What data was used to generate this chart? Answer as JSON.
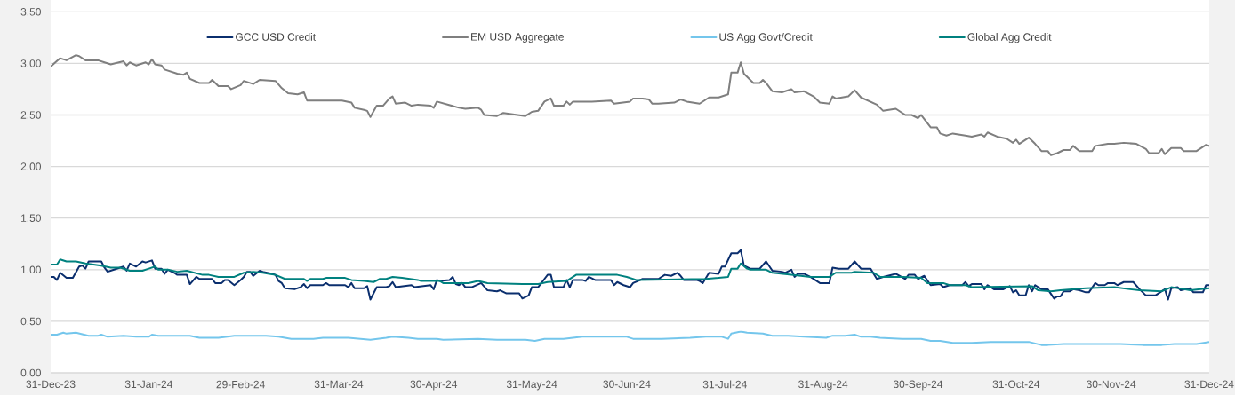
{
  "chart_data": {
    "type": "line",
    "xlim": [
      "2023-12-31",
      "2024-12-31"
    ],
    "xticks": [
      {
        "value": "2023-12-31",
        "label": "31-Dec-23"
      },
      {
        "value": "2024-01-31",
        "label": "31-Jan-24"
      },
      {
        "value": "2024-02-29",
        "label": "29-Feb-24"
      },
      {
        "value": "2024-03-31",
        "label": "31-Mar-24"
      },
      {
        "value": "2024-04-30",
        "label": "30-Apr-24"
      },
      {
        "value": "2024-05-31",
        "label": "31-May-24"
      },
      {
        "value": "2024-06-30",
        "label": "30-Jun-24"
      },
      {
        "value": "2024-07-31",
        "label": "31-Jul-24"
      },
      {
        "value": "2024-08-31",
        "label": "31-Aug-24"
      },
      {
        "value": "2024-09-30",
        "label": "30-Sep-24"
      },
      {
        "value": "2024-10-31",
        "label": "31-Oct-24"
      },
      {
        "value": "2024-11-30",
        "label": "30-Nov-24"
      },
      {
        "value": "2024-12-31",
        "label": "31-Dec-24"
      }
    ],
    "ylim": [
      0,
      3.5
    ],
    "yticks": [
      {
        "value": 0,
        "label": "0.00"
      },
      {
        "value": 0.5,
        "label": "0.50"
      },
      {
        "value": 1,
        "label": "1.00"
      },
      {
        "value": 1.5,
        "label": "1.50"
      },
      {
        "value": 2,
        "label": "2.00"
      },
      {
        "value": 2.5,
        "label": "2.50"
      },
      {
        "value": 3,
        "label": "3.00"
      },
      {
        "value": 3.5,
        "label": "3.50"
      }
    ],
    "grid": "y",
    "legend": "top",
    "marker": "none",
    "line_style": "solid",
    "series": [
      {
        "name": "GCC USD Credit",
        "color": "#0b2f6e",
        "x": [
          "2023-12-31",
          "2024-01-01",
          "2024-01-02",
          "2024-01-03",
          "2024-01-05",
          "2024-01-07",
          "2024-01-09",
          "2024-01-10",
          "2024-01-11",
          "2024-01-12",
          "2024-01-16",
          "2024-01-17",
          "2024-01-18",
          "2024-01-20",
          "2024-01-23",
          "2024-01-24",
          "2024-01-25",
          "2024-01-27",
          "2024-01-29",
          "2024-01-30",
          "2024-02-01",
          "2024-02-02",
          "2024-02-04",
          "2024-02-05",
          "2024-02-06",
          "2024-02-08",
          "2024-02-09",
          "2024-02-12",
          "2024-02-13",
          "2024-02-15",
          "2024-02-16",
          "2024-02-20",
          "2024-02-21",
          "2024-02-23",
          "2024-02-24",
          "2024-02-25",
          "2024-02-27",
          "2024-02-29",
          "2024-03-01",
          "2024-03-02",
          "2024-03-03",
          "2024-03-04",
          "2024-03-06",
          "2024-03-07",
          "2024-03-10",
          "2024-03-11",
          "2024-03-12",
          "2024-03-13",
          "2024-03-14",
          "2024-03-17",
          "2024-03-19",
          "2024-03-20",
          "2024-03-21",
          "2024-03-22",
          "2024-03-26",
          "2024-03-27",
          "2024-03-28",
          "2024-04-02",
          "2024-04-03",
          "2024-04-04",
          "2024-04-05",
          "2024-04-08",
          "2024-04-09",
          "2024-04-10",
          "2024-04-12",
          "2024-04-15",
          "2024-04-16",
          "2024-04-17",
          "2024-04-18",
          "2024-04-23",
          "2024-04-24",
          "2024-04-29",
          "2024-04-30",
          "2024-05-01",
          "2024-05-02",
          "2024-05-05",
          "2024-05-06",
          "2024-05-07",
          "2024-05-08",
          "2024-05-09",
          "2024-05-10",
          "2024-05-12",
          "2024-05-15",
          "2024-05-17",
          "2024-05-20",
          "2024-05-21",
          "2024-05-23",
          "2024-05-27",
          "2024-05-28",
          "2024-05-30",
          "2024-05-31",
          "2024-06-02",
          "2024-06-04",
          "2024-06-05",
          "2024-06-06",
          "2024-06-07",
          "2024-06-10",
          "2024-06-11",
          "2024-06-12",
          "2024-06-13",
          "2024-06-16",
          "2024-06-17",
          "2024-06-18",
          "2024-06-20",
          "2024-06-25",
          "2024-06-26",
          "2024-06-27",
          "2024-06-29",
          "2024-07-01",
          "2024-07-02",
          "2024-07-05",
          "2024-07-10",
          "2024-07-12",
          "2024-07-14",
          "2024-07-16",
          "2024-07-17",
          "2024-07-18",
          "2024-07-22",
          "2024-07-23",
          "2024-07-24",
          "2024-07-26",
          "2024-07-29",
          "2024-07-30",
          "2024-07-31",
          "2024-08-02",
          "2024-08-04",
          "2024-08-05",
          "2024-08-06",
          "2024-08-08",
          "2024-08-11",
          "2024-08-13",
          "2024-08-15",
          "2024-08-18",
          "2024-08-19",
          "2024-08-21",
          "2024-08-22",
          "2024-08-23",
          "2024-08-25",
          "2024-08-27",
          "2024-08-30",
          "2024-09-02",
          "2024-09-03",
          "2024-09-05",
          "2024-09-08",
          "2024-09-10",
          "2024-09-12",
          "2024-09-15",
          "2024-09-17",
          "2024-09-19",
          "2024-09-23",
          "2024-09-26",
          "2024-09-27",
          "2024-09-29",
          "2024-09-30",
          "2024-10-02",
          "2024-10-04",
          "2024-10-07",
          "2024-10-08",
          "2024-10-10",
          "2024-10-14",
          "2024-10-15",
          "2024-10-16",
          "2024-10-17",
          "2024-10-20",
          "2024-10-21",
          "2024-10-22",
          "2024-10-24",
          "2024-10-27",
          "2024-10-29",
          "2024-10-30",
          "2024-10-31",
          "2024-11-01",
          "2024-11-03",
          "2024-11-04",
          "2024-11-05",
          "2024-11-06",
          "2024-11-08",
          "2024-11-10",
          "2024-11-12",
          "2024-11-13",
          "2024-11-14",
          "2024-11-15",
          "2024-11-17",
          "2024-11-18",
          "2024-11-20",
          "2024-11-22",
          "2024-11-23",
          "2024-11-25",
          "2024-11-26",
          "2024-11-28",
          "2024-11-29",
          "2024-12-01",
          "2024-12-02",
          "2024-12-04",
          "2024-12-07",
          "2024-12-09",
          "2024-12-11",
          "2024-12-14",
          "2024-12-16",
          "2024-12-17",
          "2024-12-18",
          "2024-12-19",
          "2024-12-21",
          "2024-12-22",
          "2024-12-25",
          "2024-12-26",
          "2024-12-29",
          "2024-12-30",
          "2024-12-31"
        ],
        "values": [
          0.93,
          0.93,
          0.9,
          0.97,
          0.92,
          0.92,
          1.03,
          1.04,
          1.01,
          1.08,
          1.08,
          1.02,
          0.98,
          1.0,
          1.03,
          0.99,
          1.06,
          1.03,
          1.08,
          1.07,
          1.09,
          1.01,
          1.01,
          0.96,
          1.0,
          0.97,
          0.95,
          0.95,
          0.86,
          0.93,
          0.91,
          0.91,
          0.87,
          0.87,
          0.9,
          0.9,
          0.85,
          0.9,
          0.93,
          0.98,
          0.98,
          0.94,
          0.99,
          0.98,
          0.96,
          0.95,
          0.89,
          0.87,
          0.82,
          0.81,
          0.83,
          0.86,
          0.82,
          0.85,
          0.85,
          0.87,
          0.85,
          0.85,
          0.83,
          0.87,
          0.82,
          0.82,
          0.84,
          0.71,
          0.83,
          0.83,
          0.84,
          0.88,
          0.83,
          0.85,
          0.83,
          0.85,
          0.81,
          0.9,
          0.89,
          0.9,
          0.93,
          0.86,
          0.85,
          0.87,
          0.83,
          0.83,
          0.87,
          0.8,
          0.79,
          0.8,
          0.77,
          0.77,
          0.72,
          0.75,
          0.83,
          0.83,
          0.91,
          0.95,
          0.95,
          0.83,
          0.83,
          0.9,
          0.83,
          0.9,
          0.9,
          0.89,
          0.93,
          0.9,
          0.9,
          0.85,
          0.88,
          0.85,
          0.83,
          0.87,
          0.91,
          0.91,
          0.95,
          0.94,
          0.97,
          0.94,
          0.9,
          0.9,
          0.89,
          0.87,
          0.97,
          0.96,
          1.03,
          1.03,
          1.16,
          1.16,
          1.19,
          1.04,
          1.01,
          1.01,
          1.08,
          0.99,
          0.98,
          0.97,
          1.0,
          0.93,
          0.96,
          0.96,
          0.93,
          0.87,
          0.87,
          1.02,
          1.01,
          1.01,
          1.08,
          1.01,
          1.01,
          0.91,
          0.93,
          0.96,
          0.91,
          0.95,
          0.95,
          0.91,
          0.94,
          0.85,
          0.86,
          0.83,
          0.85,
          0.85,
          0.88,
          0.84,
          0.86,
          0.86,
          0.81,
          0.85,
          0.81,
          0.81,
          0.84,
          0.78,
          0.8,
          0.75,
          0.75,
          0.85,
          0.79,
          0.85,
          0.81,
          0.81,
          0.72,
          0.74,
          0.74,
          0.79,
          0.79,
          0.81,
          0.8,
          0.78,
          0.78,
          0.87,
          0.85,
          0.85,
          0.87,
          0.87,
          0.85,
          0.88,
          0.88,
          0.81,
          0.75,
          0.75,
          0.79,
          0.81,
          0.71,
          0.82,
          0.83,
          0.8,
          0.82,
          0.78,
          0.78,
          0.85,
          0.85
        ]
      },
      {
        "name": "EM USD Aggregate",
        "color": "#7f7f7f",
        "x": [
          "2023-12-31",
          "2024-01-03",
          "2024-01-05",
          "2024-01-08",
          "2024-01-09",
          "2024-01-11",
          "2024-01-15",
          "2024-01-17",
          "2024-01-19",
          "2024-01-23",
          "2024-01-24",
          "2024-01-25",
          "2024-01-27",
          "2024-01-30",
          "2024-01-31",
          "2024-02-01",
          "2024-02-02",
          "2024-02-04",
          "2024-02-05",
          "2024-02-09",
          "2024-02-11",
          "2024-02-12",
          "2024-02-13",
          "2024-02-16",
          "2024-02-19",
          "2024-02-20",
          "2024-02-22",
          "2024-02-25",
          "2024-02-26",
          "2024-02-29",
          "2024-03-01",
          "2024-03-04",
          "2024-03-06",
          "2024-03-11",
          "2024-03-13",
          "2024-03-15",
          "2024-03-18",
          "2024-03-20",
          "2024-03-21",
          "2024-03-24",
          "2024-03-27",
          "2024-04-01",
          "2024-04-04",
          "2024-04-05",
          "2024-04-08",
          "2024-04-09",
          "2024-04-10",
          "2024-04-12",
          "2024-04-14",
          "2024-04-16",
          "2024-04-17",
          "2024-04-18",
          "2024-04-21",
          "2024-04-23",
          "2024-04-25",
          "2024-04-29",
          "2024-04-30",
          "2024-05-01",
          "2024-05-08",
          "2024-05-10",
          "2024-05-14",
          "2024-05-15",
          "2024-05-16",
          "2024-05-20",
          "2024-05-22",
          "2024-05-29",
          "2024-05-31",
          "2024-06-02",
          "2024-06-04",
          "2024-06-06",
          "2024-06-07",
          "2024-06-10",
          "2024-06-11",
          "2024-06-12",
          "2024-06-13",
          "2024-06-19",
          "2024-06-25",
          "2024-06-26",
          "2024-07-01",
          "2024-07-02",
          "2024-07-05",
          "2024-07-07",
          "2024-07-08",
          "2024-07-10",
          "2024-07-15",
          "2024-07-17",
          "2024-07-19",
          "2024-07-23",
          "2024-07-26",
          "2024-07-29",
          "2024-08-01",
          "2024-08-02",
          "2024-08-04",
          "2024-08-05",
          "2024-08-06",
          "2024-08-09",
          "2024-08-11",
          "2024-08-12",
          "2024-08-13",
          "2024-08-15",
          "2024-08-18",
          "2024-08-21",
          "2024-08-22",
          "2024-08-25",
          "2024-08-28",
          "2024-08-30",
          "2024-09-02",
          "2024-09-03",
          "2024-09-04",
          "2024-09-08",
          "2024-09-10",
          "2024-09-12",
          "2024-09-17",
          "2024-09-18",
          "2024-09-19",
          "2024-09-23",
          "2024-09-26",
          "2024-09-28",
          "2024-09-30",
          "2024-10-01",
          "2024-10-02",
          "2024-10-04",
          "2024-10-06",
          "2024-10-07",
          "2024-10-09",
          "2024-10-11",
          "2024-10-15",
          "2024-10-17",
          "2024-10-20",
          "2024-10-21",
          "2024-10-22",
          "2024-10-25",
          "2024-10-28",
          "2024-10-30",
          "2024-10-31",
          "2024-11-01",
          "2024-11-04",
          "2024-11-06",
          "2024-11-08",
          "2024-11-10",
          "2024-11-11",
          "2024-11-13",
          "2024-11-15",
          "2024-11-17",
          "2024-11-18",
          "2024-11-20",
          "2024-11-24",
          "2024-11-25",
          "2024-11-29",
          "2024-12-01",
          "2024-12-04",
          "2024-12-08",
          "2024-12-11",
          "2024-12-12",
          "2024-12-15",
          "2024-12-16",
          "2024-12-17",
          "2024-12-19",
          "2024-12-22",
          "2024-12-23",
          "2024-12-27",
          "2024-12-30",
          "2024-12-31"
        ],
        "values": [
          2.97,
          3.05,
          3.03,
          3.08,
          3.07,
          3.03,
          3.03,
          3.01,
          2.99,
          3.02,
          2.98,
          3.01,
          2.98,
          3.01,
          2.99,
          3.04,
          2.99,
          2.98,
          2.94,
          2.9,
          2.89,
          2.91,
          2.85,
          2.81,
          2.81,
          2.84,
          2.78,
          2.78,
          2.75,
          2.79,
          2.83,
          2.8,
          2.84,
          2.83,
          2.76,
          2.71,
          2.7,
          2.72,
          2.64,
          2.64,
          2.64,
          2.64,
          2.62,
          2.57,
          2.55,
          2.54,
          2.48,
          2.59,
          2.59,
          2.66,
          2.68,
          2.61,
          2.62,
          2.59,
          2.6,
          2.59,
          2.57,
          2.63,
          2.57,
          2.56,
          2.57,
          2.55,
          2.5,
          2.49,
          2.52,
          2.49,
          2.53,
          2.54,
          2.63,
          2.66,
          2.59,
          2.59,
          2.63,
          2.6,
          2.63,
          2.63,
          2.64,
          2.61,
          2.63,
          2.66,
          2.66,
          2.65,
          2.61,
          2.61,
          2.62,
          2.65,
          2.63,
          2.61,
          2.67,
          2.67,
          2.7,
          2.91,
          2.91,
          3.01,
          2.9,
          2.81,
          2.81,
          2.84,
          2.81,
          2.73,
          2.72,
          2.75,
          2.72,
          2.73,
          2.68,
          2.62,
          2.61,
          2.68,
          2.66,
          2.68,
          2.74,
          2.67,
          2.6,
          2.57,
          2.54,
          2.56,
          2.5,
          2.5,
          2.47,
          2.5,
          2.46,
          2.38,
          2.38,
          2.32,
          2.3,
          2.32,
          2.3,
          2.29,
          2.31,
          2.29,
          2.33,
          2.29,
          2.27,
          2.23,
          2.26,
          2.22,
          2.28,
          2.22,
          2.15,
          2.15,
          2.11,
          2.13,
          2.16,
          2.16,
          2.2,
          2.15,
          2.15,
          2.2,
          2.22,
          2.22,
          2.23,
          2.22,
          2.17,
          2.13,
          2.13,
          2.17,
          2.12,
          2.18,
          2.18,
          2.15,
          2.15,
          2.21,
          2.2
        ]
      },
      {
        "name": "US Agg Govt/Credit",
        "color": "#74c6ec",
        "x": [
          "2023-12-31",
          "2024-01-02",
          "2024-01-04",
          "2024-01-05",
          "2024-01-08",
          "2024-01-12",
          "2024-01-15",
          "2024-01-16",
          "2024-01-18",
          "2024-01-23",
          "2024-01-27",
          "2024-01-31",
          "2024-02-01",
          "2024-02-03",
          "2024-02-13",
          "2024-02-16",
          "2024-02-22",
          "2024-02-27",
          "2024-03-02",
          "2024-03-08",
          "2024-03-12",
          "2024-03-16",
          "2024-03-23",
          "2024-03-26",
          "2024-04-03",
          "2024-04-10",
          "2024-04-15",
          "2024-04-17",
          "2024-04-22",
          "2024-04-25",
          "2024-05-01",
          "2024-05-03",
          "2024-05-14",
          "2024-05-20",
          "2024-05-29",
          "2024-06-01",
          "2024-06-04",
          "2024-06-10",
          "2024-06-16",
          "2024-06-26",
          "2024-06-30",
          "2024-07-02",
          "2024-07-11",
          "2024-07-20",
          "2024-07-25",
          "2024-07-30",
          "2024-08-01",
          "2024-08-02",
          "2024-08-05",
          "2024-08-07",
          "2024-08-12",
          "2024-08-15",
          "2024-08-20",
          "2024-08-25",
          "2024-09-01",
          "2024-09-03",
          "2024-09-07",
          "2024-09-10",
          "2024-09-12",
          "2024-09-15",
          "2024-09-18",
          "2024-09-25",
          "2024-10-01",
          "2024-10-04",
          "2024-10-07",
          "2024-10-11",
          "2024-10-17",
          "2024-10-23",
          "2024-10-29",
          "2024-11-04",
          "2024-11-08",
          "2024-11-10",
          "2024-11-15",
          "2024-11-22",
          "2024-11-27",
          "2024-12-03",
          "2024-12-10",
          "2024-12-16",
          "2024-12-20",
          "2024-12-23",
          "2024-12-27",
          "2024-12-31"
        ],
        "values": [
          0.37,
          0.37,
          0.39,
          0.38,
          0.39,
          0.36,
          0.36,
          0.37,
          0.35,
          0.36,
          0.35,
          0.35,
          0.37,
          0.36,
          0.36,
          0.34,
          0.34,
          0.36,
          0.36,
          0.36,
          0.35,
          0.33,
          0.33,
          0.34,
          0.34,
          0.32,
          0.34,
          0.35,
          0.34,
          0.33,
          0.33,
          0.32,
          0.33,
          0.32,
          0.32,
          0.31,
          0.33,
          0.33,
          0.35,
          0.35,
          0.35,
          0.33,
          0.33,
          0.34,
          0.35,
          0.35,
          0.33,
          0.38,
          0.4,
          0.39,
          0.38,
          0.36,
          0.36,
          0.35,
          0.34,
          0.36,
          0.36,
          0.37,
          0.35,
          0.35,
          0.34,
          0.33,
          0.33,
          0.31,
          0.31,
          0.29,
          0.29,
          0.3,
          0.3,
          0.3,
          0.27,
          0.27,
          0.28,
          0.28,
          0.28,
          0.28,
          0.27,
          0.27,
          0.28,
          0.28,
          0.28,
          0.3
        ]
      },
      {
        "name": "Global Agg Credit",
        "color": "#00817f",
        "x": [
          "2023-12-31",
          "2024-01-02",
          "2024-01-03",
          "2024-01-05",
          "2024-01-08",
          "2024-01-11",
          "2024-01-16",
          "2024-01-19",
          "2024-01-22",
          "2024-01-25",
          "2024-01-29",
          "2024-01-31",
          "2024-02-02",
          "2024-02-03",
          "2024-02-06",
          "2024-02-09",
          "2024-02-12",
          "2024-02-17",
          "2024-02-19",
          "2024-02-22",
          "2024-02-27",
          "2024-03-01",
          "2024-03-04",
          "2024-03-07",
          "2024-03-09",
          "2024-03-11",
          "2024-03-14",
          "2024-03-20",
          "2024-03-21",
          "2024-03-22",
          "2024-03-26",
          "2024-03-27",
          "2024-04-02",
          "2024-04-04",
          "2024-04-08",
          "2024-04-11",
          "2024-04-13",
          "2024-04-15",
          "2024-04-17",
          "2024-04-20",
          "2024-04-25",
          "2024-04-26",
          "2024-05-02",
          "2024-05-03",
          "2024-05-11",
          "2024-05-14",
          "2024-05-17",
          "2024-05-28",
          "2024-06-02",
          "2024-06-05",
          "2024-06-11",
          "2024-06-14",
          "2024-06-27",
          "2024-06-30",
          "2024-07-03",
          "2024-07-25",
          "2024-07-29",
          "2024-08-01",
          "2024-08-02",
          "2024-08-04",
          "2024-08-05",
          "2024-08-07",
          "2024-08-08",
          "2024-08-13",
          "2024-08-15",
          "2024-08-21",
          "2024-08-27",
          "2024-09-02",
          "2024-09-04",
          "2024-09-09",
          "2024-09-10",
          "2024-09-16",
          "2024-09-18",
          "2024-09-25",
          "2024-10-01",
          "2024-10-03",
          "2024-10-08",
          "2024-10-10",
          "2024-10-15",
          "2024-10-17",
          "2024-11-05",
          "2024-11-07",
          "2024-11-11",
          "2024-11-14",
          "2024-11-22",
          "2024-12-01",
          "2024-12-06",
          "2024-12-09",
          "2024-12-16",
          "2024-12-19",
          "2024-12-23",
          "2024-12-25",
          "2024-12-31"
        ],
        "values": [
          1.05,
          1.05,
          1.1,
          1.08,
          1.08,
          1.06,
          1.04,
          1.02,
          1.02,
          0.99,
          0.99,
          1.01,
          1.03,
          1.0,
          1.0,
          0.98,
          0.99,
          0.95,
          0.95,
          0.93,
          0.93,
          0.97,
          0.98,
          0.97,
          0.96,
          0.95,
          0.91,
          0.91,
          0.89,
          0.91,
          0.91,
          0.92,
          0.92,
          0.9,
          0.89,
          0.88,
          0.91,
          0.91,
          0.93,
          0.92,
          0.9,
          0.89,
          0.89,
          0.87,
          0.87,
          0.89,
          0.87,
          0.86,
          0.86,
          0.88,
          0.89,
          0.95,
          0.95,
          0.93,
          0.9,
          0.91,
          0.92,
          0.93,
          1.01,
          1.01,
          1.06,
          1.01,
          1.0,
          1.0,
          0.97,
          0.95,
          0.93,
          0.93,
          0.97,
          0.97,
          0.98,
          0.97,
          0.93,
          0.93,
          0.92,
          0.87,
          0.87,
          0.85,
          0.85,
          0.83,
          0.84,
          0.8,
          0.79,
          0.8,
          0.82,
          0.83,
          0.81,
          0.8,
          0.79,
          0.83,
          0.81,
          0.8,
          0.82
        ]
      }
    ]
  }
}
